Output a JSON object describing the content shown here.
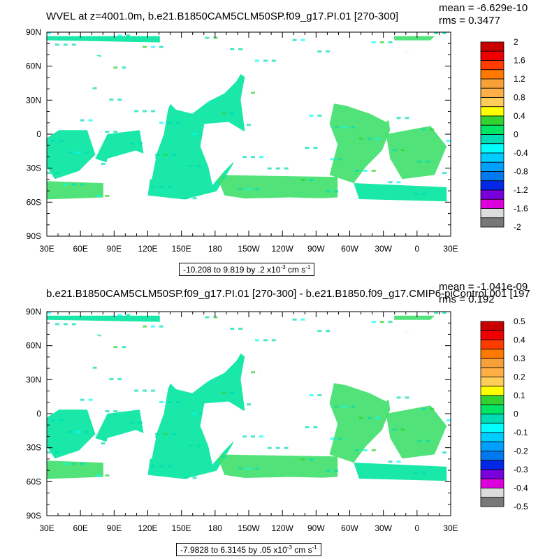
{
  "panels": [
    {
      "title": "WVEL at z=4001.0m, b.e21.B1850CAM5CLM50SP.f09_g17.PI.01 [270-300]",
      "stats": {
        "mean": "mean = -6.629e-10",
        "rms": "rms = 0.3477"
      },
      "range": {
        "text": "-10.208 to 9.819 by .2 x10",
        "exp": "-3",
        "unit": " cm s",
        "unit_exp": "-1"
      },
      "colorbar_labels": [
        "2",
        "1.6",
        "1.2",
        "0.8",
        "0.4",
        "0",
        "-0.4",
        "-0.8",
        "-1.2",
        "-1.6",
        "-2"
      ]
    },
    {
      "title": "b.e21.B1850CAM5CLM50SP.f09_g17.PI.01 [270-300] - b.e21.B1850.f09_g17.CMIP6-piControl.001 [197",
      "stats": {
        "mean": "mean = -1.041e-09",
        "rms": "rms = 0.192"
      },
      "range": {
        "text": "-7.9828 to 6.3145 by .05 x10",
        "exp": "-3",
        "unit": " cm s",
        "unit_exp": "-1"
      },
      "colorbar_labels": [
        "0.5",
        "0.4",
        "0.3",
        "0.2",
        "0.1",
        "0",
        "-0.1",
        "-0.2",
        "-0.3",
        "-0.4",
        "-0.5"
      ]
    }
  ],
  "x_ticks": [
    "30E",
    "60E",
    "90E",
    "120E",
    "150E",
    "180",
    "150W",
    "120W",
    "90W",
    "60W",
    "30W",
    "0",
    "30E"
  ],
  "y_ticks": [
    "90N",
    "60N",
    "30N",
    "0",
    "30S",
    "60S",
    "90S"
  ],
  "colorbar_colors": [
    "#c80000",
    "#ee0000",
    "#ff3c00",
    "#ff7800",
    "#f7a038",
    "#ffaf46",
    "#ffcd5a",
    "#ffff00",
    "#32d232",
    "#00e664",
    "#00dcb4",
    "#00ffff",
    "#00cdff",
    "#00a0ff",
    "#0078f0",
    "#0028e6",
    "#7800dc",
    "#dc00dc",
    "#dcdcdc",
    "#787878"
  ]
}
